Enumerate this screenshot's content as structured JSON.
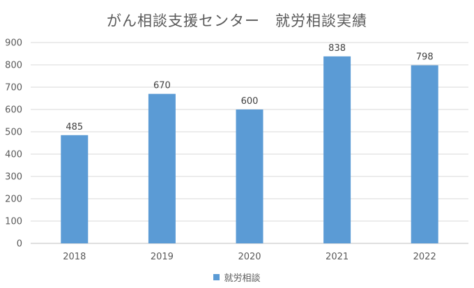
{
  "colors": {
    "bar": "#5b9bd5",
    "gridline": "#d9d9d9",
    "axis": "#bfbfbf",
    "text": "#595959",
    "label": "#404040"
  },
  "chart_data": {
    "type": "bar",
    "title": "がん相談支援センター　就労相談実績",
    "categories": [
      "2018",
      "2019",
      "2020",
      "2021",
      "2022"
    ],
    "series": [
      {
        "name": "就労相談",
        "values": [
          485,
          670,
          600,
          838,
          798
        ]
      }
    ],
    "ylim": [
      0,
      900
    ],
    "yticks": [
      "0",
      "100",
      "200",
      "300",
      "400",
      "500",
      "600",
      "700",
      "800",
      "900"
    ],
    "data_labels": [
      "485",
      "670",
      "600",
      "838",
      "798"
    ],
    "grid": true,
    "legend_position": "bottom"
  }
}
